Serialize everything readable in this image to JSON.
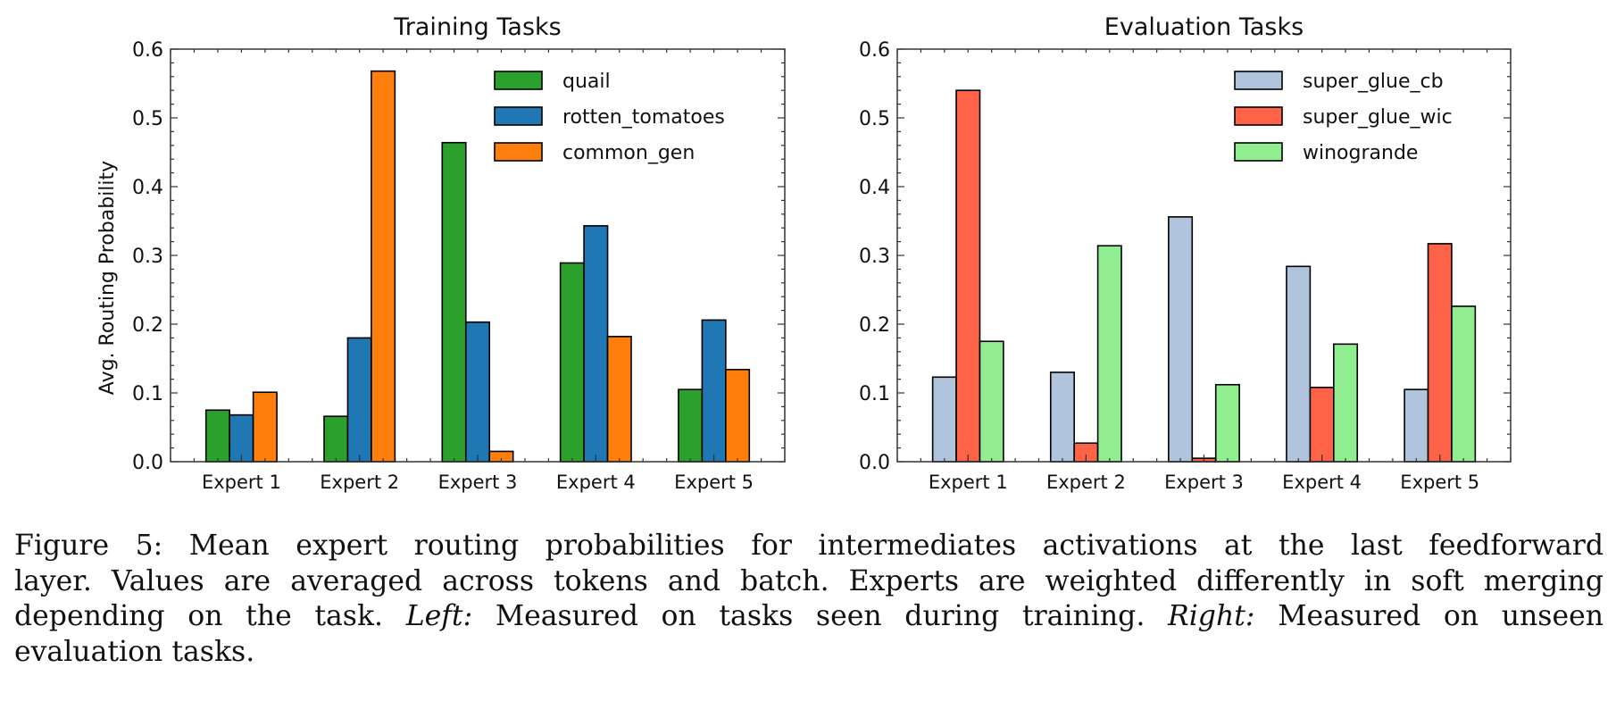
{
  "chart_data": [
    {
      "type": "bar",
      "title": "Training Tasks",
      "xlabel": "",
      "ylabel": "Avg. Routing Probability",
      "ylim": [
        0,
        0.6
      ],
      "yticks": [
        "0.0",
        "0.1",
        "0.2",
        "0.3",
        "0.4",
        "0.5",
        "0.6"
      ],
      "categories": [
        "Expert 1",
        "Expert 2",
        "Expert 3",
        "Expert 4",
        "Expert 5"
      ],
      "legend_position": "top-right",
      "series": [
        {
          "name": "quail",
          "color": "#2ca02c",
          "values": [
            0.075,
            0.066,
            0.464,
            0.289,
            0.105
          ]
        },
        {
          "name": "rotten_tomatoes",
          "color": "#1f77b4",
          "values": [
            0.068,
            0.18,
            0.203,
            0.343,
            0.206
          ]
        },
        {
          "name": "common_gen",
          "color": "#ff7f0e",
          "values": [
            0.101,
            0.568,
            0.015,
            0.182,
            0.134
          ]
        }
      ]
    },
    {
      "type": "bar",
      "title": "Evaluation Tasks",
      "xlabel": "",
      "ylabel": "",
      "ylim": [
        0,
        0.6
      ],
      "yticks": [
        "0.0",
        "0.1",
        "0.2",
        "0.3",
        "0.4",
        "0.5",
        "0.6"
      ],
      "categories": [
        "Expert 1",
        "Expert 2",
        "Expert 3",
        "Expert 4",
        "Expert 5"
      ],
      "legend_position": "top-right",
      "series": [
        {
          "name": "super_glue_cb",
          "color": "#b0c4de",
          "values": [
            0.123,
            0.13,
            0.356,
            0.284,
            0.105
          ]
        },
        {
          "name": "super_glue_wic",
          "color": "#ff6347",
          "values": [
            0.54,
            0.027,
            0.005,
            0.108,
            0.317
          ]
        },
        {
          "name": "winogrande",
          "color": "#90ee90",
          "values": [
            0.175,
            0.314,
            0.112,
            0.171,
            0.226
          ]
        }
      ]
    }
  ],
  "caption": {
    "line1": "Figure 5: Mean expert routing probabilities for intermediates activations at the last feedforward",
    "line2": "layer. Values are averaged across tokens and batch. Experts are weighted differently in soft merging",
    "line3_a": "depending on the task.",
    "line3_left": "Left:",
    "line3_b": "Measured on tasks seen during training.",
    "line3_right": "Right:",
    "line3_c": "Measured on unseen",
    "line4": "evaluation tasks."
  }
}
